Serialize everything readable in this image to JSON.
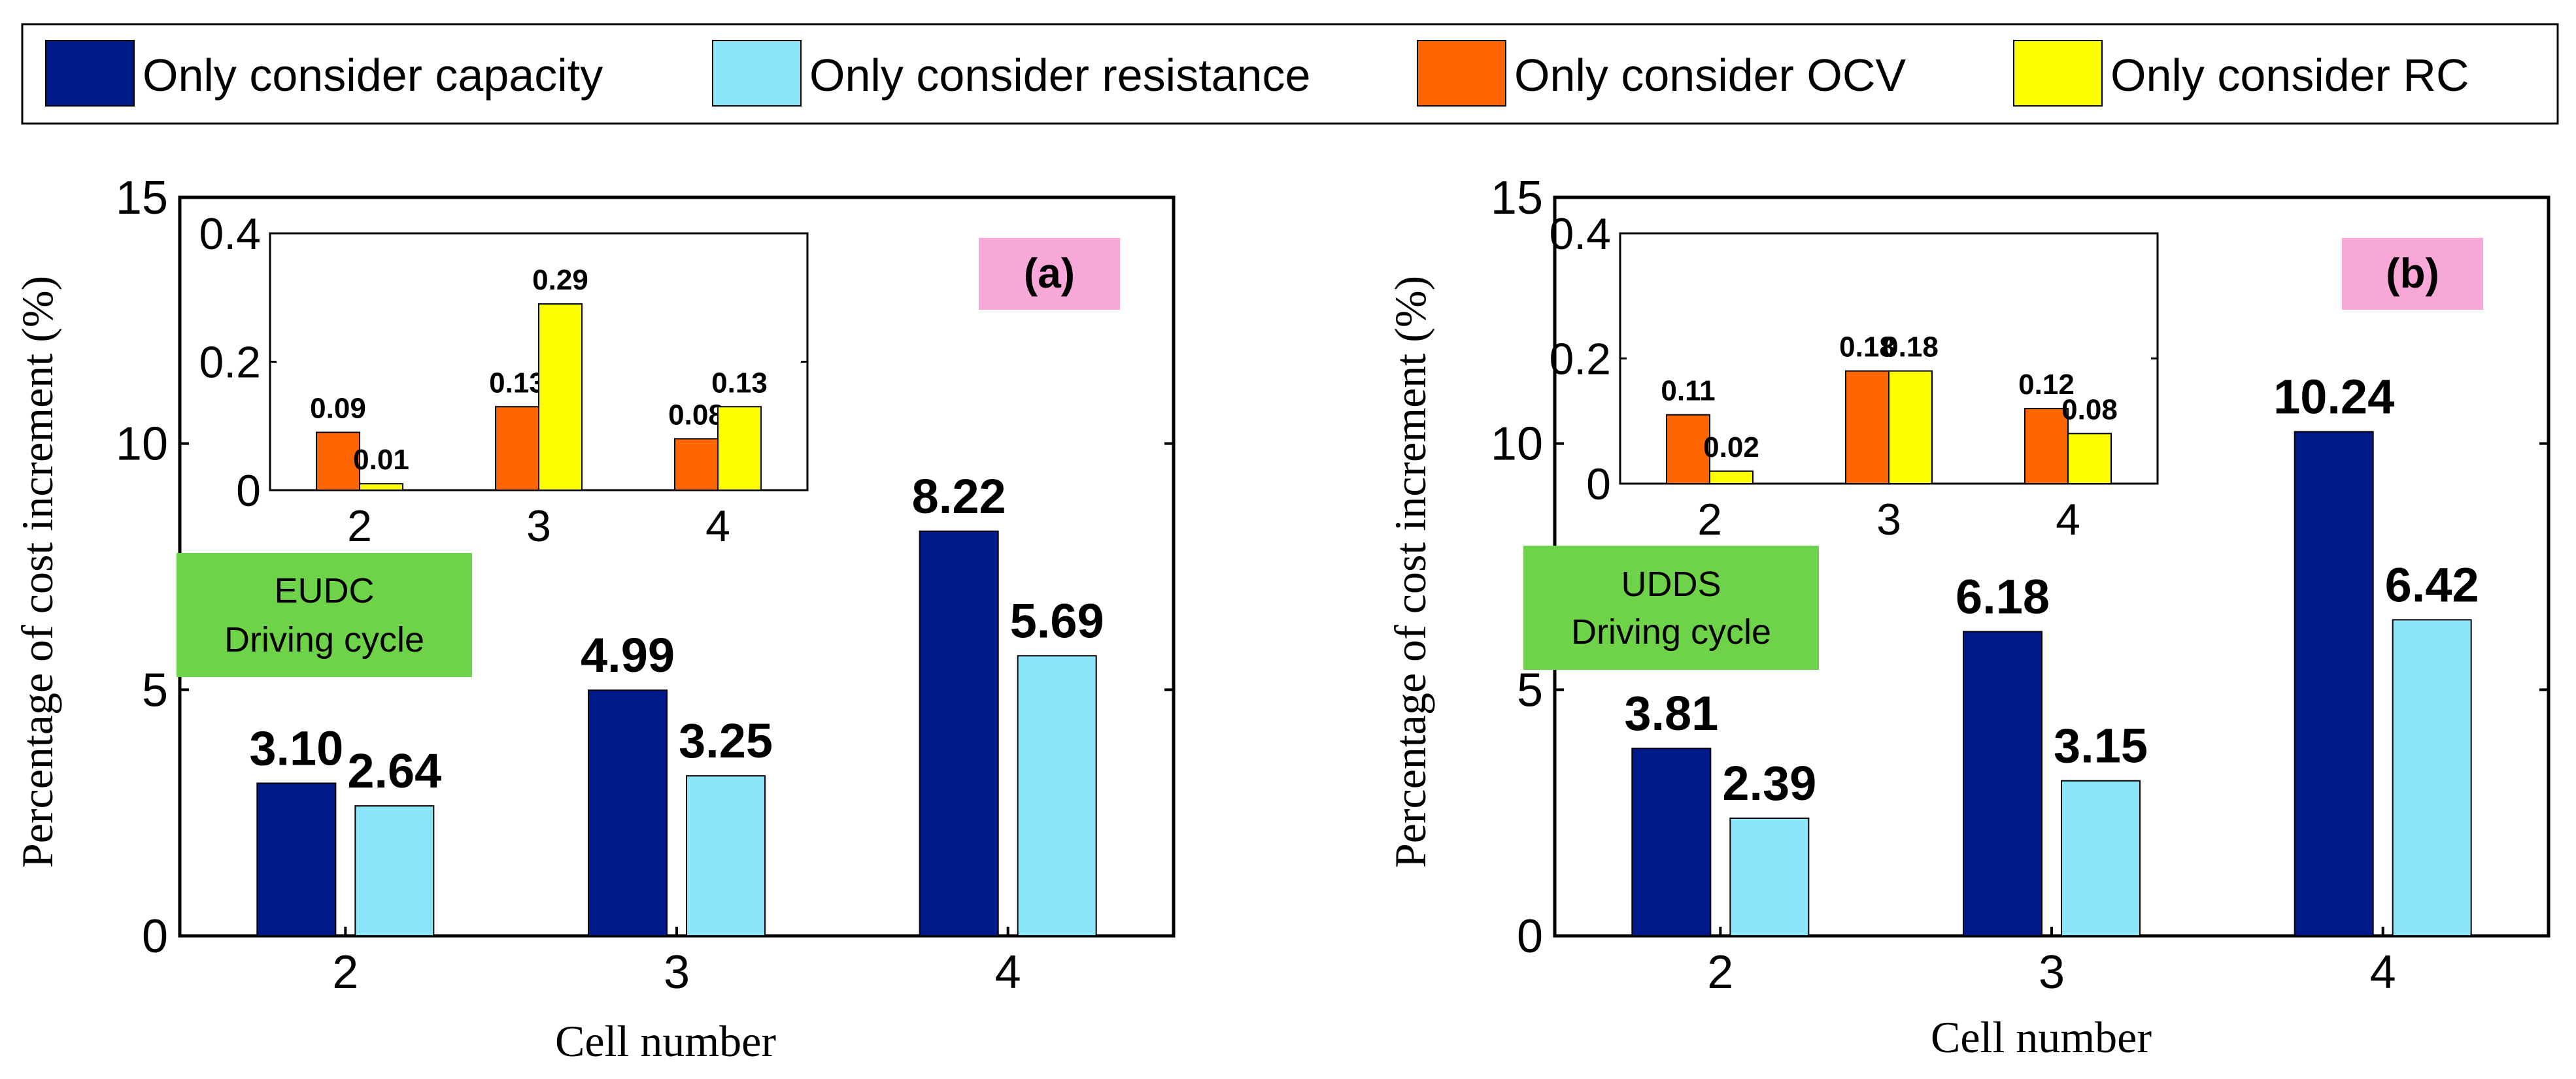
{
  "colors": {
    "capacity": "#001a8c",
    "resistance": "#8ae6f8",
    "ocv": "#ff6600",
    "rc": "#ffff00",
    "panel_badge": "#f7a8d8",
    "cycle_box": "#6fd34a"
  },
  "legend": [
    {
      "key": "capacity",
      "label": "Only consider capacity"
    },
    {
      "key": "resistance",
      "label": "Only consider resistance"
    },
    {
      "key": "ocv",
      "label": "Only consider OCV"
    },
    {
      "key": "rc",
      "label": "Only consider RC"
    }
  ],
  "chart_data": [
    {
      "type": "bar",
      "panel": "(a)",
      "cycle": "EUDC Driving cycle",
      "cycle_lines": [
        "EUDC",
        "Driving cycle"
      ],
      "xlabel": "Cell number",
      "ylabel": "Percentage of cost increment (%)",
      "categories": [
        "2",
        "3",
        "4"
      ],
      "ylim": [
        0,
        15
      ],
      "yticks": [
        "0",
        "5",
        "10",
        "15"
      ],
      "series": [
        {
          "key": "capacity",
          "name": "Only consider capacity",
          "values": [
            3.1,
            4.99,
            8.22
          ],
          "labels": [
            "3.10",
            "4.99",
            "8.22"
          ]
        },
        {
          "key": "resistance",
          "name": "Only consider resistance",
          "values": [
            2.64,
            3.25,
            5.69
          ],
          "labels": [
            "2.64",
            "3.25",
            "5.69"
          ]
        }
      ],
      "inset": {
        "type": "bar",
        "categories": [
          "2",
          "3",
          "4"
        ],
        "ylim": [
          0,
          0.4
        ],
        "yticks": [
          "0",
          "0.2",
          "0.4"
        ],
        "series": [
          {
            "key": "ocv",
            "name": "Only consider OCV",
            "values": [
              0.09,
              0.13,
              0.08
            ],
            "labels": [
              "0.09",
              "0.13",
              "0.08"
            ]
          },
          {
            "key": "rc",
            "name": "Only consider RC",
            "values": [
              0.01,
              0.29,
              0.13
            ],
            "labels": [
              "0.01",
              "0.29",
              "0.13"
            ]
          }
        ]
      }
    },
    {
      "type": "bar",
      "panel": "(b)",
      "cycle": "UDDS Driving cycle",
      "cycle_lines": [
        "UDDS",
        "Driving cycle"
      ],
      "xlabel": "Cell number",
      "ylabel": "Percentage of cost increment (%)",
      "categories": [
        "2",
        "3",
        "4"
      ],
      "ylim": [
        0,
        15
      ],
      "yticks": [
        "0",
        "5",
        "10",
        "15"
      ],
      "series": [
        {
          "key": "capacity",
          "name": "Only consider capacity",
          "values": [
            3.81,
            6.18,
            10.24
          ],
          "labels": [
            "3.81",
            "6.18",
            "10.24"
          ]
        },
        {
          "key": "resistance",
          "name": "Only consider resistance",
          "values": [
            2.39,
            3.15,
            6.42
          ],
          "labels": [
            "2.39",
            "3.15",
            "6.42"
          ]
        }
      ],
      "inset": {
        "type": "bar",
        "categories": [
          "2",
          "3",
          "4"
        ],
        "ylim": [
          0,
          0.4
        ],
        "yticks": [
          "0",
          "0.2",
          "0.4"
        ],
        "series": [
          {
            "key": "ocv",
            "name": "Only consider OCV",
            "values": [
              0.11,
              0.18,
              0.12
            ],
            "labels": [
              "0.11",
              "0.18",
              "0.12"
            ]
          },
          {
            "key": "rc",
            "name": "Only consider RC",
            "values": [
              0.02,
              0.18,
              0.08
            ],
            "labels": [
              "0.02",
              "0.18",
              "0.08"
            ]
          }
        ]
      }
    }
  ]
}
